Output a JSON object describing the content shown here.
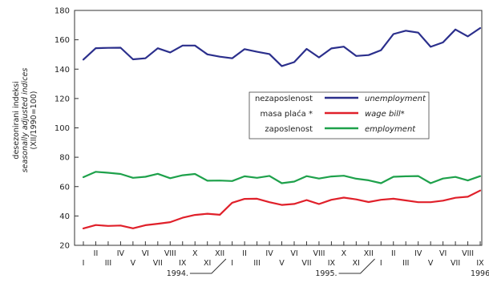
{
  "chart_data": {
    "type": "line",
    "ylabel_lines": [
      "desezonirani indeksi",
      "seasonally adjusted indices",
      "(XII/1990=100)"
    ],
    "ylim": [
      20,
      180
    ],
    "yticks": [
      20,
      40,
      60,
      80,
      100,
      120,
      140,
      160,
      180
    ],
    "grid": false,
    "x": [
      "I-1994",
      "II-1994",
      "III-1994",
      "IV-1994",
      "V-1994",
      "VI-1994",
      "VII-1994",
      "VIII-1994",
      "IX-1994",
      "X-1994",
      "XI-1994",
      "XII-1994",
      "I-1995",
      "II-1995",
      "III-1995",
      "IV-1995",
      "V-1995",
      "VI-1995",
      "VII-1995",
      "VIII-1995",
      "IX-1995",
      "X-1995",
      "XI-1995",
      "XII-1995",
      "I-1996",
      "II-1996",
      "III-1996",
      "IV-1996",
      "V-1996",
      "VI-1996",
      "VII-1996",
      "VIII-1996",
      "IX-1996"
    ],
    "tick_labels_lower": [
      "I",
      "",
      "III",
      "",
      "V",
      "",
      "VII",
      "",
      "IX",
      "",
      "XI",
      "",
      "I",
      "",
      "III",
      "",
      "V",
      "",
      "VII",
      "",
      "IX",
      "",
      "XI",
      "",
      "I",
      "",
      "III",
      "",
      "V",
      "",
      "VII",
      "",
      "IX"
    ],
    "tick_labels_upper": [
      "",
      "II",
      "",
      "IV",
      "",
      "VI",
      "",
      "VIII",
      "",
      "X",
      "",
      "XII",
      "",
      "II",
      "",
      "IV",
      "",
      "VI",
      "",
      "VIII",
      "",
      "X",
      "",
      "XII",
      "",
      "II",
      "",
      "IV",
      "",
      "VI",
      "",
      "VIII",
      ""
    ],
    "year_labels": [
      {
        "label": "1994.",
        "index": 11
      },
      {
        "label": "1995.",
        "index": 23
      },
      {
        "label": "1996",
        "index": 32
      }
    ],
    "legend_position": "center-right",
    "series": [
      {
        "name": "nezaposlenost",
        "name_en": "unemployment",
        "color": "#2b2f8c",
        "values": [
          146.5,
          154.3,
          154.5,
          154.6,
          146.7,
          147.4,
          154.2,
          151.4,
          156.1,
          156.1,
          150.1,
          148.5,
          147.4,
          153.6,
          151.8,
          150.3,
          142.1,
          144.8,
          153.8,
          148.0,
          154.1,
          155.3,
          149.0,
          149.6,
          152.9,
          163.9,
          166.2,
          164.9,
          155.2,
          158.2,
          167.0,
          162.3,
          168.0
        ]
      },
      {
        "name": "masa plaća *",
        "name_en": "wage bill*",
        "color": "#e0202a",
        "values": [
          31.5,
          33.8,
          33.2,
          33.5,
          31.6,
          33.7,
          34.7,
          35.8,
          38.8,
          40.7,
          41.5,
          40.8,
          49.0,
          51.6,
          51.7,
          49.4,
          47.5,
          48.2,
          50.8,
          48.1,
          51.0,
          52.5,
          51.3,
          49.5,
          51.0,
          51.7,
          50.6,
          49.4,
          49.4,
          50.4,
          52.4,
          53.1,
          57.3
        ]
      },
      {
        "name": "zaposlenost",
        "name_en": "employment",
        "color": "#1ea14b",
        "values": [
          66.4,
          70.1,
          69.4,
          68.6,
          66.0,
          66.7,
          68.7,
          65.7,
          67.7,
          68.6,
          64.0,
          64.1,
          63.8,
          67.0,
          66.0,
          67.3,
          62.3,
          63.4,
          67.1,
          65.5,
          66.9,
          67.4,
          65.4,
          64.3,
          62.3,
          66.7,
          67.0,
          67.2,
          62.3,
          65.5,
          66.6,
          64.2,
          67.1
        ]
      }
    ]
  }
}
